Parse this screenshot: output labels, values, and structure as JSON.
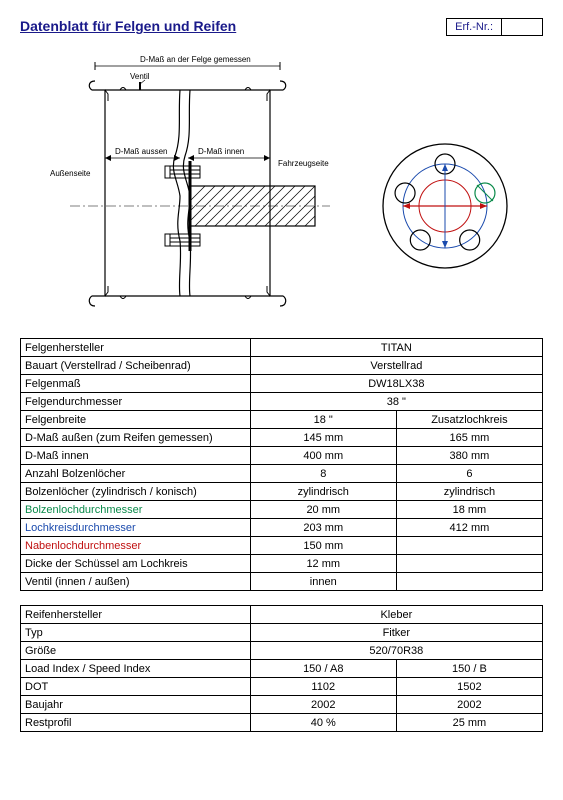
{
  "header": {
    "title": "Datenblatt für Felgen und Reifen",
    "erf_label": "Erf.-Nr.:",
    "erf_value": ""
  },
  "diagram_labels": {
    "top": "D-Maß an der Felge gemessen",
    "ventil": "Ventil",
    "aussenseite": "Außenseite",
    "d_mass_aussen": "D-Maß aussen",
    "d_mass_innen": "D-Maß innen",
    "fahrzeugseite": "Fahrzeugseite"
  },
  "bolt_circle": {
    "outer_r": 62,
    "hub_r": 26,
    "bolt_r": 10,
    "pcd_r": 42,
    "holes": 5,
    "colors": {
      "outer": "#000000",
      "pcd": "#1a4aad",
      "hub_edge": "#c01010",
      "bolt_green": "#0a8a4a",
      "arrow_red": "#c01010"
    }
  },
  "table1": {
    "rows": [
      {
        "label": "Felgenhersteller",
        "v1": "TITAN",
        "v2": "",
        "merge": true
      },
      {
        "label": "Bauart (Verstellrad / Scheibenrad)",
        "v1": "Verstellrad",
        "v2": "",
        "merge": true
      },
      {
        "label": "Felgenmaß",
        "v1": "DW18LX38",
        "v2": "",
        "merge": true
      },
      {
        "label": "Felgendurchmesser",
        "v1": "38 \"",
        "v2": "",
        "merge": true
      },
      {
        "label": "Felgenbreite",
        "v1": "18 \"",
        "v2": "Zusatzlochkreis"
      },
      {
        "label": "D-Maß außen (zum Reifen gemessen)",
        "v1": "145 mm",
        "v2": "165 mm"
      },
      {
        "label": "D-Maß innen",
        "v1": "400 mm",
        "v2": "380 mm"
      },
      {
        "label": "Anzahl Bolzenlöcher",
        "v1": "8",
        "v2": "6"
      },
      {
        "label": "Bolzenlöcher (zylindrisch / konisch)",
        "v1": "zylindrisch",
        "v2": "zylindrisch"
      },
      {
        "label": "Bolzenlochdurchmesser",
        "v1": "20 mm",
        "v2": "18 mm",
        "color": "c-green"
      },
      {
        "label": "Lochkreisdurchmesser",
        "v1": "203 mm",
        "v2": "412 mm",
        "color": "c-blue"
      },
      {
        "label": "Nabenlochdurchmesser",
        "v1": "150 mm",
        "v2": "",
        "color": "c-red"
      },
      {
        "label": "Dicke der Schüssel am Lochkreis",
        "v1": "12 mm",
        "v2": ""
      },
      {
        "label": "Ventil (innen / außen)",
        "v1": "innen",
        "v2": ""
      }
    ]
  },
  "table2": {
    "rows": [
      {
        "label": "Reifenhersteller",
        "v1": "Kleber",
        "merge": true
      },
      {
        "label": "Typ",
        "v1": "Fitker",
        "merge": true
      },
      {
        "label": "Größe",
        "v1": "520/70R38",
        "merge": true
      },
      {
        "label": "Load Index / Speed Index",
        "v1": "150 / A8",
        "v2": "150 / B"
      },
      {
        "label": "DOT",
        "v1": "1102",
        "v2": "1502"
      },
      {
        "label": "Baujahr",
        "v1": "2002",
        "v2": "2002"
      },
      {
        "label": "Restprofil",
        "v1": "40 %",
        "v2": "25 mm"
      }
    ]
  }
}
